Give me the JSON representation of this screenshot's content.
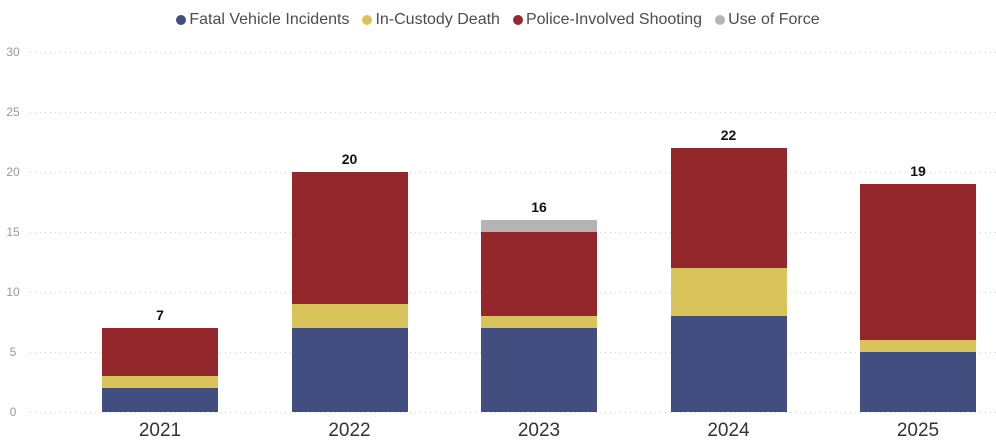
{
  "chart_data": {
    "type": "bar",
    "stacked": true,
    "title": "",
    "categories": [
      "2021",
      "2022",
      "2023",
      "2024",
      "2025"
    ],
    "series": [
      {
        "name": "Fatal Vehicle Incidents",
        "color": "#424e80",
        "values": [
          2,
          7,
          7,
          8,
          5
        ]
      },
      {
        "name": "In-Custody Death",
        "color": "#d9c45c",
        "values": [
          1,
          2,
          1,
          4,
          1
        ]
      },
      {
        "name": "Police-Involved Shooting",
        "color": "#94272c",
        "values": [
          4,
          11,
          7,
          10,
          13
        ]
      },
      {
        "name": "Use of Force",
        "color": "#b4b4b4",
        "values": [
          0,
          0,
          1,
          0,
          0
        ]
      }
    ],
    "totals": [
      7,
      20,
      16,
      22,
      19
    ],
    "y_axis": {
      "min": 0,
      "max": 30,
      "tick_interval": 5,
      "ticks": [
        0,
        5,
        10,
        15,
        20,
        25,
        30
      ]
    },
    "xlabel": "",
    "ylabel": "",
    "legend_position": "top",
    "grid": "dotted-horizontal",
    "colors": {
      "legend_text": "#4d4d4d",
      "axis_tick_text": "#999999",
      "category_text": "#333333",
      "total_label_text": "#111111",
      "gridline": "#cfcfcf",
      "background": "#ffffff"
    }
  }
}
